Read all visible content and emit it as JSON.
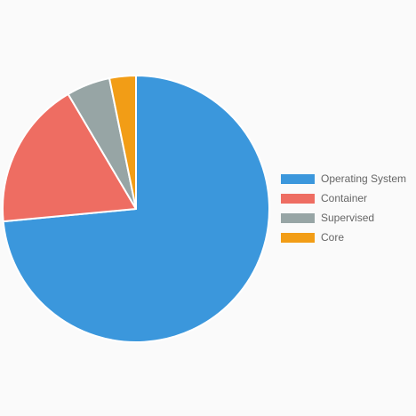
{
  "chart_data": {
    "type": "pie",
    "legend_position": "right",
    "slices": [
      {
        "label": "Operating System",
        "value": 73.5,
        "color": "#3b97dc"
      },
      {
        "label": "Container",
        "value": 18.0,
        "color": "#ee6d62"
      },
      {
        "label": "Supervised",
        "value": 5.3,
        "color": "#97a5a5"
      },
      {
        "label": "Core",
        "value": 3.2,
        "color": "#f29d16"
      }
    ]
  }
}
